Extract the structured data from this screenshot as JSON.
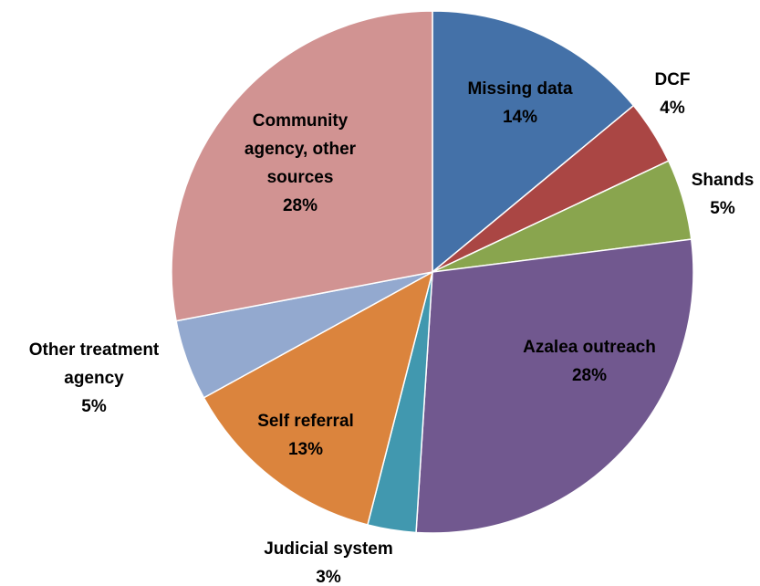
{
  "chart_data": {
    "type": "pie",
    "slices": [
      {
        "label": "Missing data",
        "value": 14,
        "value_label": "14%",
        "color": "#4471a8"
      },
      {
        "label": "DCF",
        "value": 4,
        "value_label": "4%",
        "color": "#aa4644"
      },
      {
        "label": "Shands",
        "value": 5,
        "value_label": "5%",
        "color": "#89a54e"
      },
      {
        "label": "Azalea outreach",
        "value": 28,
        "value_label": "28%",
        "color": "#71588f"
      },
      {
        "label": "Judicial system",
        "value": 3,
        "value_label": "3%",
        "color": "#4198af"
      },
      {
        "label": "Self referral",
        "value": 13,
        "value_label": "13%",
        "color": "#db843d"
      },
      {
        "label": "Other treatment agency",
        "value": 5,
        "value_label": "5%",
        "color": "#93a9cf"
      },
      {
        "label": "Community agency, other sources",
        "value": 28,
        "value_label": "28%",
        "color": "#d19392"
      }
    ],
    "start": "12 o'clock",
    "direction": "clockwise",
    "legend": "none",
    "title": ""
  }
}
